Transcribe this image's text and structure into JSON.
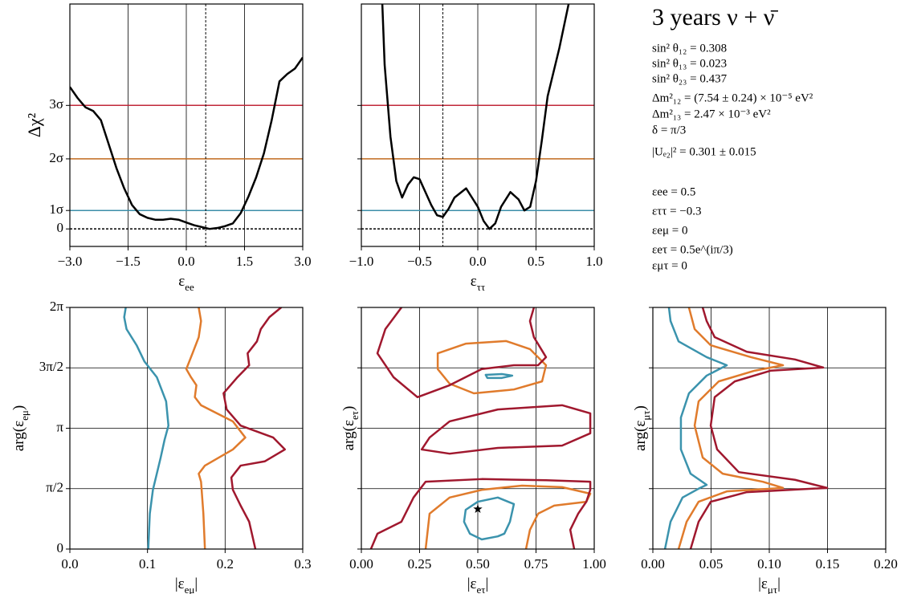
{
  "chart_data": [
    {
      "type": "line",
      "ylabel": "Δχ²",
      "xlabel": {
        "base": "ε",
        "sub": "ee"
      },
      "xlim": [
        -3,
        3
      ],
      "xticks": [
        {
          "value": -3,
          "label": "−3.0"
        },
        {
          "value": -1.5,
          "label": "−1.5"
        },
        {
          "value": 0,
          "label": "0.0"
        },
        1.5,
        {
          "value": 3,
          "label": "3.0"
        }
      ],
      "ylim": [
        -0.95,
        12.2
      ],
      "yticks": [
        0,
        {
          "value": 1,
          "label": "1σ"
        },
        {
          "value": 3.8,
          "label": "2σ"
        },
        {
          "value": 6.7,
          "label": "3σ"
        }
      ],
      "show_ytick_labels": true,
      "ytick_line_colors": [
        "#000000",
        "#3b8ea8",
        "#c06a1e",
        "#c0283a"
      ],
      "ytick_line_dash": [
        true,
        false,
        false,
        false
      ],
      "x_grid": true,
      "best_fit": 0.5,
      "x": [
        -3,
        -2.8,
        -2.6,
        -2.4,
        -2.2,
        -2,
        -1.8,
        -1.6,
        -1.4,
        -1.2,
        -1,
        -0.8,
        -0.6,
        -0.4,
        -0.2,
        0,
        0.2,
        0.4,
        0.6,
        0.8,
        1,
        1.2,
        1.4,
        1.6,
        1.8,
        2,
        2.2,
        2.4,
        2.6,
        2.8,
        3
      ],
      "series": [
        {
          "color": "#000000",
          "values": [
            7.7,
            7.1,
            6.6,
            6.4,
            5.9,
            4.6,
            3.3,
            2.2,
            1.3,
            0.8,
            0.6,
            0.5,
            0.5,
            0.55,
            0.5,
            0.35,
            0.2,
            0.1,
            0,
            0.05,
            0.15,
            0.3,
            0.85,
            1.75,
            2.8,
            4.1,
            5.9,
            8.0,
            8.4,
            8.7,
            9.3
          ]
        }
      ]
    },
    {
      "type": "line",
      "xlabel": {
        "base": "ε",
        "sub": "ττ"
      },
      "xlim": [
        -1,
        1
      ],
      "xticks": [
        {
          "value": -1,
          "label": "−1.0"
        },
        {
          "value": -0.5,
          "label": "−0.5"
        },
        {
          "value": 0,
          "label": "0.0"
        },
        0.5,
        {
          "value": 1,
          "label": "1.0"
        }
      ],
      "ylim": [
        -0.95,
        12.2
      ],
      "yticks": [
        0,
        {
          "value": 1,
          "label": "1σ"
        },
        {
          "value": 3.8,
          "label": "2σ"
        },
        {
          "value": 6.7,
          "label": "3σ"
        }
      ],
      "show_ytick_labels": false,
      "ytick_line_colors": [
        "#000000",
        "#3b8ea8",
        "#c06a1e",
        "#c0283a"
      ],
      "ytick_line_dash": [
        true,
        false,
        false,
        false
      ],
      "x_grid": true,
      "best_fit": -0.3,
      "x": [
        -0.82,
        -0.8,
        -0.75,
        -0.7,
        -0.65,
        -0.6,
        -0.55,
        -0.5,
        -0.45,
        -0.4,
        -0.35,
        -0.3,
        -0.25,
        -0.2,
        -0.1,
        -0.05,
        0,
        0.05,
        0.1,
        0.15,
        0.2,
        0.28,
        0.35,
        0.4,
        0.45,
        0.5,
        0.55,
        0.6,
        0.7,
        0.78
      ],
      "series": [
        {
          "color": "#000000",
          "values": [
            12.2,
            8.9,
            5.0,
            2.6,
            1.7,
            2.4,
            2.8,
            2.7,
            2.0,
            1.3,
            0.74,
            0.65,
            1.1,
            1.7,
            2.2,
            1.7,
            1.2,
            0.43,
            0,
            0.3,
            1.2,
            2.0,
            1.6,
            1.0,
            1.2,
            2.6,
            4.8,
            7.2,
            9.8,
            12.2
          ]
        }
      ]
    },
    {
      "type": "contour",
      "ylabel": {
        "base": "arg(ε",
        "sub": "eμ",
        "tail": ")"
      },
      "xlabel": {
        "base": "|ε",
        "sub": "eμ",
        "tail": "|"
      },
      "xlim": [
        0,
        0.3
      ],
      "xticks": [
        {
          "value": 0,
          "label": "0.0"
        },
        0.1,
        0.2,
        0.3
      ],
      "ylim": [
        0,
        6.2832
      ],
      "yticks": [
        0,
        {
          "value": 1.5708,
          "label": "π/2"
        },
        {
          "value": 3.1416,
          "label": "π"
        },
        {
          "value": 4.7124,
          "label": "3π/2"
        },
        {
          "value": 6.2832,
          "label": "2π"
        }
      ],
      "show_ytick_labels": true,
      "x_grid": true,
      "series": [
        {
          "color": "#3b93ad",
          "x": [
            0.101,
            0.103,
            0.107,
            0.112,
            0.117,
            0.122,
            0.127,
            0.124,
            0.112,
            0.096,
            0.086,
            0.073,
            0.07,
            0.072
          ],
          "y": [
            0,
            0.92,
            1.54,
            1.96,
            2.38,
            2.84,
            3.21,
            3.84,
            4.47,
            4.88,
            5.3,
            5.72,
            6.03,
            6.28
          ]
        },
        {
          "color": "#e07b2c",
          "x": [
            0.174,
            0.172,
            0.169,
            0.166,
            0.174,
            0.21,
            0.226,
            0.21,
            0.169,
            0.161,
            0.163,
            0.156,
            0.15,
            0.158,
            0.166,
            0.169,
            0.166
          ],
          "y": [
            0,
            0.92,
            1.75,
            1.96,
            2.17,
            2.59,
            2.9,
            3.32,
            3.74,
            3.95,
            4.26,
            4.47,
            4.68,
            5.09,
            5.51,
            5.93,
            6.28
          ]
        },
        {
          "color": "#a0182e",
          "x": [
            0.239,
            0.231,
            0.22,
            0.21,
            0.208,
            0.22,
            0.251,
            0.277,
            0.262,
            0.22,
            0.202,
            0.198,
            0.216,
            0.231,
            0.229,
            0.241,
            0.246,
            0.257,
            0.272
          ],
          "y": [
            0,
            0.71,
            1.13,
            1.54,
            1.86,
            2.17,
            2.28,
            2.59,
            2.9,
            3.21,
            3.63,
            4.05,
            4.47,
            4.78,
            5.09,
            5.4,
            5.72,
            6.03,
            6.28
          ]
        }
      ]
    },
    {
      "type": "contour",
      "ylabel": {
        "base": "arg(ε",
        "sub": "eτ",
        "tail": ")"
      },
      "xlabel": {
        "base": "|ε",
        "sub": "eτ",
        "tail": "|"
      },
      "xlim": [
        0,
        1
      ],
      "xticks": [
        {
          "value": 0,
          "label": "0.00"
        },
        {
          "value": 0.25,
          "label": "0.25"
        },
        {
          "value": 0.5,
          "label": "0.50"
        },
        {
          "value": 0.75,
          "label": "0.75"
        },
        {
          "value": 1,
          "label": "1.00"
        }
      ],
      "ylim": [
        0,
        6.2832
      ],
      "yticks": [
        0,
        {
          "value": 1.5708,
          "label": "π/2"
        },
        {
          "value": 3.1416,
          "label": "π"
        },
        {
          "value": 4.7124,
          "label": "3π/2"
        },
        {
          "value": 6.2832,
          "label": "2π"
        }
      ],
      "show_ytick_labels": false,
      "x_grid": true,
      "marker": {
        "x": 0.5,
        "y": 1.04
      },
      "series": [
        {
          "color": "#3b93ad",
          "x": [
            0.5,
            0.586,
            0.655,
            0.638,
            0.614,
            0.586,
            0.517,
            0.466,
            0.441,
            0.448,
            0.5
          ],
          "y": [
            1.23,
            1.34,
            1.17,
            0.71,
            0.4,
            0.33,
            0.25,
            0.4,
            0.71,
            1.02,
            1.23
          ]
        },
        {
          "color": "#3b93ad",
          "x": [
            0.534,
            0.603,
            0.648,
            0.603,
            0.541,
            0.534
          ],
          "y": [
            4.53,
            4.55,
            4.51,
            4.45,
            4.45,
            4.53
          ]
        },
        {
          "color": "#e07b2c",
          "x": [
            0.276,
            0.293,
            0.379,
            0.517,
            0.69,
            0.862,
            0.983,
            0.966,
            0.828,
            0.759,
            0.724,
            0.707
          ],
          "y": [
            0,
            0.92,
            1.34,
            1.54,
            1.65,
            1.61,
            1.44,
            1.23,
            1.13,
            0.92,
            0.5,
            0
          ]
        },
        {
          "color": "#e07b2c",
          "x": [
            0.328,
            0.448,
            0.621,
            0.724,
            0.793,
            0.776,
            0.655,
            0.483,
            0.379,
            0.328,
            0.328
          ],
          "y": [
            5.09,
            5.34,
            5.41,
            5.2,
            4.78,
            4.36,
            4.15,
            4.05,
            4.3,
            4.68,
            5.09
          ]
        },
        {
          "color": "#a0182e",
          "x": [
            0.041,
            0.069,
            0.172,
            0.224,
            0.276,
            0.517,
            0.793,
            0.983,
            0.983,
            0.966,
            0.931,
            0.897,
            0.914
          ],
          "y": [
            0,
            0.4,
            0.71,
            1.34,
            1.75,
            1.82,
            1.79,
            1.75,
            1.54,
            1.23,
            0.92,
            0.5,
            0
          ]
        },
        {
          "color": "#a0182e",
          "x": [
            0.293,
            0.379,
            0.586,
            0.862,
            0.983,
            0.983,
            0.862,
            0.586,
            0.379,
            0.259,
            0.293
          ],
          "y": [
            2.9,
            3.32,
            3.63,
            3.74,
            3.53,
            3.01,
            2.69,
            2.63,
            2.48,
            2.59,
            2.9
          ]
        },
        {
          "color": "#a0182e",
          "x": [
            0.172,
            0.103,
            0.069,
            0.138,
            0.241,
            0.379,
            0.517,
            0.655,
            0.759,
            0.793,
            0.741,
            0.724,
            0.741
          ],
          "y": [
            6.28,
            5.72,
            5.09,
            4.47,
            3.95,
            4.26,
            4.68,
            4.78,
            4.78,
            4.99,
            5.51,
            5.93,
            6.28
          ]
        }
      ]
    },
    {
      "type": "contour",
      "ylabel": {
        "base": "arg(ε",
        "sub": "μτ",
        "tail": ")"
      },
      "xlabel": {
        "base": "|ε",
        "sub": "μτ",
        "tail": "|"
      },
      "xlim": [
        0,
        0.2
      ],
      "xticks": [
        {
          "value": 0,
          "label": "0.00"
        },
        {
          "value": 0.05,
          "label": "0.05"
        },
        {
          "value": 0.1,
          "label": "0.10"
        },
        {
          "value": 0.15,
          "label": "0.15"
        },
        {
          "value": 0.2,
          "label": "0.20"
        }
      ],
      "ylim": [
        0,
        6.2832
      ],
      "yticks": [
        0,
        {
          "value": 1.5708,
          "label": "π/2"
        },
        {
          "value": 3.1416,
          "label": "π"
        },
        {
          "value": 4.7124,
          "label": "3π/2"
        },
        {
          "value": 6.2832,
          "label": "2π"
        }
      ],
      "show_ytick_labels": false,
      "x_grid": true,
      "series": [
        {
          "color": "#3b93ad",
          "x": [
            0.0104,
            0.0152,
            0.0255,
            0.0393,
            0.0462,
            0.0324,
            0.0241,
            0.0241,
            0.031,
            0.0462,
            0.0635,
            0.0462,
            0.0221,
            0.0152,
            0.0138
          ],
          "y": [
            0,
            0.71,
            1.34,
            1.57,
            1.67,
            1.96,
            2.59,
            3.42,
            4.05,
            4.51,
            4.78,
            4.99,
            5.4,
            5.93,
            6.28
          ]
        },
        {
          "color": "#e07b2c",
          "x": [
            0.0221,
            0.029,
            0.0393,
            0.0635,
            0.1118,
            0.0945,
            0.06,
            0.0428,
            0.0359,
            0.0393,
            0.0566,
            0.0876,
            0.1118,
            0.0842,
            0.0497,
            0.0359,
            0.031
          ],
          "y": [
            0,
            0.71,
            1.23,
            1.5,
            1.59,
            1.75,
            1.96,
            2.38,
            3.21,
            3.84,
            4.36,
            4.64,
            4.78,
            4.99,
            5.3,
            5.72,
            6.28
          ]
        },
        {
          "color": "#a0182e",
          "x": [
            0.0324,
            0.0393,
            0.0497,
            0.0807,
            0.1497,
            0.1221,
            0.0738,
            0.0552,
            0.0497,
            0.0531,
            0.0704,
            0.1014,
            0.1463,
            0.1221,
            0.0807,
            0.0531,
            0.0462,
            0.0428
          ],
          "y": [
            0,
            0.71,
            1.23,
            1.48,
            1.59,
            1.8,
            2.0,
            2.59,
            3.21,
            3.95,
            4.36,
            4.64,
            4.72,
            4.93,
            5.13,
            5.51,
            5.93,
            6.28
          ]
        }
      ]
    }
  ],
  "parameters": {
    "title": "3 years ν + ν̄",
    "lines": [
      "sin² θ₁₂ = 0.308",
      "sin² θ₁₃ = 0.023",
      "sin² θ₂₃ = 0.437",
      "Δm²₁₂ = (7.54 ± 0.24) × 10⁻⁵ eV²",
      "Δm²₁₃ = 2.47 × 10⁻³ eV²",
      "δ = π/3",
      "|Uₑ₂|² = 0.301 ± 0.015",
      "εee = 0.5",
      "εττ = −0.3",
      "εeμ = 0",
      "εeτ = 0.5e^(iπ/3)",
      "εμτ = 0"
    ]
  }
}
